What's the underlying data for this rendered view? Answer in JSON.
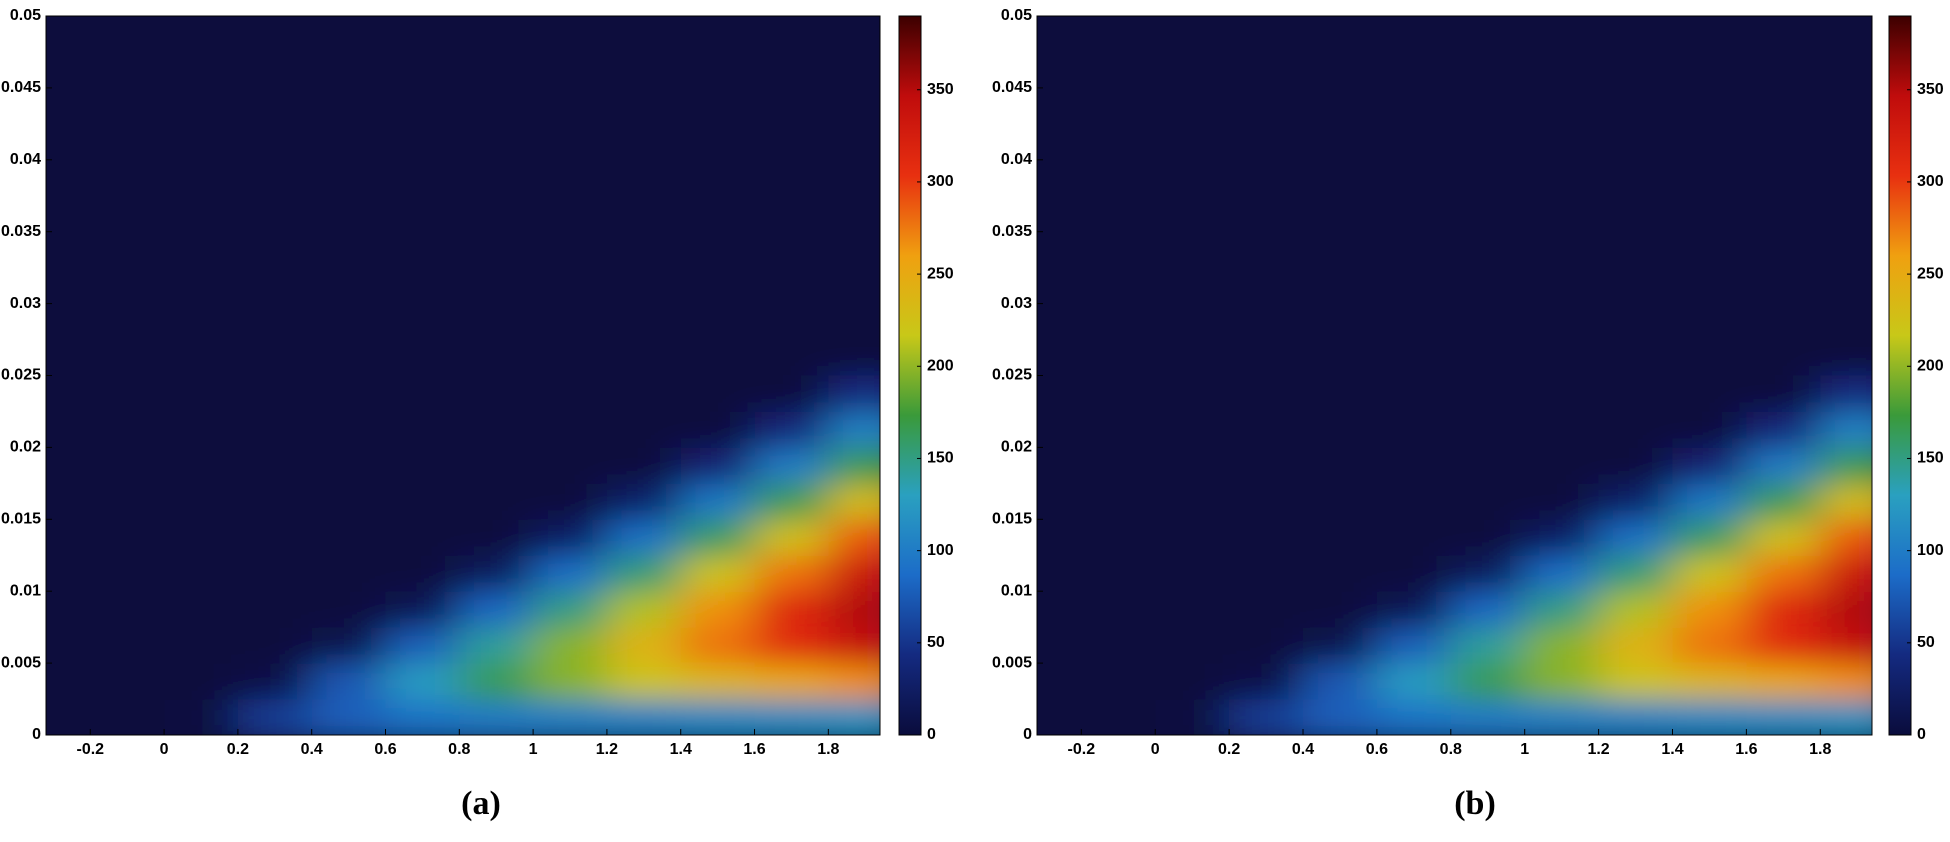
{
  "chart_data": [
    {
      "type": "heatmap",
      "caption": "(a)",
      "xlim": [
        -0.32,
        1.94
      ],
      "xticks": [
        -0.2,
        0,
        0.2,
        0.4,
        0.6,
        0.8,
        1,
        1.2,
        1.4,
        1.6,
        1.8
      ],
      "ylim": [
        0,
        0.05
      ],
      "yticks": [
        0,
        0.005,
        0.01,
        0.015,
        0.02,
        0.025,
        0.03,
        0.035,
        0.04,
        0.045,
        0.05
      ],
      "zlim": [
        0,
        390
      ],
      "zticks": [
        0,
        50,
        100,
        150,
        200,
        250,
        300,
        350
      ],
      "colormap": [
        "#0a0c3c",
        "#142a80",
        "#1c6cc8",
        "#2aa0c0",
        "#3a9a3a",
        "#c8c818",
        "#f0a010",
        "#e83010",
        "#c00c0c",
        "#3c0000"
      ],
      "x": [
        0.1,
        0.3,
        0.5,
        0.7,
        0.9,
        1.1,
        1.3,
        1.5,
        1.7,
        1.9
      ],
      "y": [
        0.00125,
        0.00375,
        0.00625,
        0.00875,
        0.01125,
        0.01375,
        0.01625,
        0.01875,
        0.02125,
        0.02375
      ],
      "z": [
        [
          2,
          56,
          79,
          93,
          100,
          103,
          106,
          111,
          113,
          119
        ],
        [
          0,
          7,
          74,
          127,
          167,
          197,
          221,
          237,
          252,
          267
        ],
        [
          0,
          0,
          12,
          79,
          142,
          197,
          241,
          278,
          312,
          341
        ],
        [
          0,
          0,
          0,
          16,
          84,
          150,
          210,
          266,
          315,
          352
        ],
        [
          0,
          0,
          0,
          0,
          21,
          88,
          155,
          222,
          278,
          337
        ],
        [
          0,
          0,
          0,
          0,
          0,
          26,
          91,
          161,
          225,
          289
        ],
        [
          0,
          0,
          0,
          0,
          0,
          0,
          30,
          97,
          166,
          230
        ],
        [
          0,
          0,
          0,
          0,
          0,
          0,
          0,
          35,
          99,
          167
        ],
        [
          0,
          0,
          0,
          0,
          0,
          0,
          0,
          0,
          40,
          104
        ],
        [
          0,
          0,
          0,
          0,
          0,
          0,
          0,
          0,
          0,
          44
        ]
      ]
    },
    {
      "type": "heatmap",
      "caption": "(b)",
      "xlim": [
        -0.32,
        1.94
      ],
      "xticks": [
        -0.2,
        0,
        0.2,
        0.4,
        0.6,
        0.8,
        1,
        1.2,
        1.4,
        1.6,
        1.8
      ],
      "ylim": [
        0,
        0.05
      ],
      "yticks": [
        0,
        0.005,
        0.01,
        0.015,
        0.02,
        0.025,
        0.03,
        0.035,
        0.04,
        0.045,
        0.05
      ],
      "zlim": [
        0,
        390
      ],
      "zticks": [
        0,
        50,
        100,
        150,
        200,
        250,
        300,
        350
      ],
      "colormap": [
        "#0a0c3c",
        "#142a80",
        "#1c6cc8",
        "#2aa0c0",
        "#3a9a3a",
        "#c8c818",
        "#f0a010",
        "#e83010",
        "#c00c0c",
        "#3c0000"
      ],
      "x": [
        0.1,
        0.3,
        0.5,
        0.7,
        0.9,
        1.1,
        1.3,
        1.5,
        1.7,
        1.9
      ],
      "y": [
        0.00125,
        0.00375,
        0.00625,
        0.00875,
        0.01125,
        0.01375,
        0.01625,
        0.01875,
        0.02125,
        0.02375
      ],
      "z": [
        [
          2,
          56,
          79,
          93,
          100,
          103,
          106,
          111,
          113,
          119
        ],
        [
          0,
          7,
          74,
          127,
          167,
          197,
          221,
          237,
          252,
          267
        ],
        [
          0,
          0,
          12,
          79,
          142,
          197,
          241,
          278,
          312,
          341
        ],
        [
          0,
          0,
          0,
          16,
          84,
          150,
          210,
          266,
          315,
          352
        ],
        [
          0,
          0,
          0,
          0,
          21,
          88,
          155,
          222,
          278,
          337
        ],
        [
          0,
          0,
          0,
          0,
          0,
          26,
          91,
          161,
          225,
          289
        ],
        [
          0,
          0,
          0,
          0,
          0,
          0,
          30,
          97,
          166,
          230
        ],
        [
          0,
          0,
          0,
          0,
          0,
          0,
          0,
          35,
          99,
          167
        ],
        [
          0,
          0,
          0,
          0,
          0,
          0,
          0,
          0,
          40,
          104
        ],
        [
          0,
          0,
          0,
          0,
          0,
          0,
          0,
          0,
          0,
          44
        ]
      ]
    }
  ]
}
